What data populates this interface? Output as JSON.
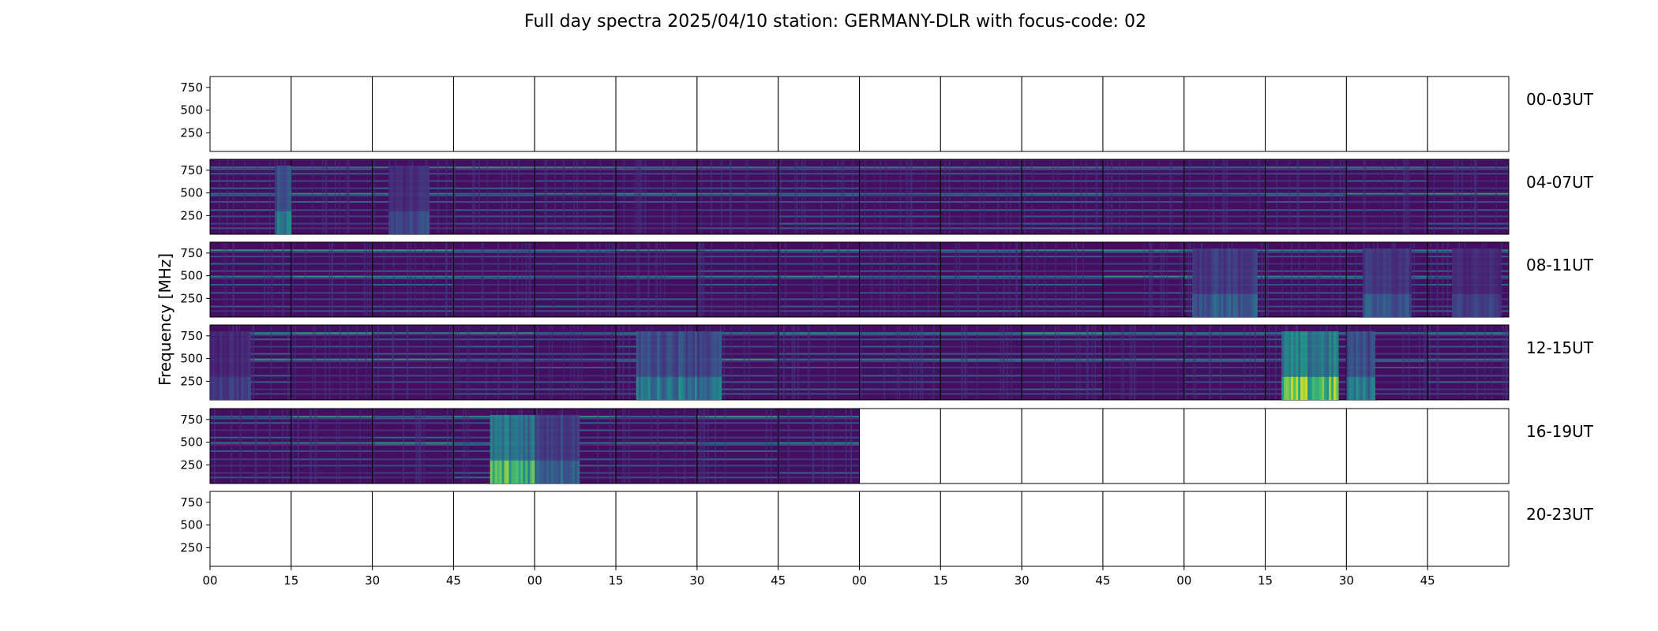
{
  "chart_data": {
    "type": "heatmap",
    "title": "Full day spectra 2025/04/10 station: GERMANY-DLR with focus-code: 02",
    "ylabel": "Frequency [MHz]",
    "xlabel": "",
    "ylim": [
      45,
      870
    ],
    "y_ticks": [
      "250",
      "500",
      "750"
    ],
    "y_tick_values": [
      250,
      500,
      750
    ],
    "x_ticks": [
      "00",
      "15",
      "30",
      "45",
      "00",
      "15",
      "30",
      "45",
      "00",
      "15",
      "30",
      "45",
      "00",
      "15",
      "30",
      "45"
    ],
    "x_unit_minutes_per_panel": 15,
    "colormap": "viridis",
    "grid": false,
    "legend": "none",
    "rows": [
      {
        "label": "00-03UT",
        "panels": [
          0,
          0,
          0,
          0,
          0,
          0,
          0,
          0,
          0,
          0,
          0,
          0,
          0,
          0,
          0,
          0
        ],
        "bursts": []
      },
      {
        "label": "04-07UT",
        "panels": [
          1,
          1,
          1,
          1,
          1,
          1,
          1,
          1,
          1,
          1,
          1,
          1,
          1,
          1,
          1,
          1
        ],
        "bursts": [
          {
            "panel": 0,
            "start": 0.8,
            "end": 1.0,
            "intensity": 0.55
          },
          {
            "panel": 2,
            "start": 0.2,
            "end": 0.7,
            "intensity": 0.3
          }
        ]
      },
      {
        "label": "08-11UT",
        "panels": [
          1,
          1,
          1,
          1,
          1,
          1,
          1,
          1,
          1,
          1,
          1,
          1,
          1,
          1,
          1,
          1
        ],
        "bursts": [
          {
            "panel": 12,
            "start": 0.1,
            "end": 0.9,
            "intensity": 0.4
          },
          {
            "panel": 14,
            "start": 0.2,
            "end": 0.8,
            "intensity": 0.35
          },
          {
            "panel": 15,
            "start": 0.3,
            "end": 0.9,
            "intensity": 0.25
          }
        ]
      },
      {
        "label": "12-15UT",
        "panels": [
          1,
          1,
          1,
          1,
          1,
          1,
          1,
          1,
          1,
          1,
          1,
          1,
          1,
          1,
          1,
          1
        ],
        "bursts": [
          {
            "panel": 0,
            "start": 0.0,
            "end": 0.5,
            "intensity": 0.25
          },
          {
            "panel": 5,
            "start": 0.25,
            "end": 1.0,
            "intensity": 0.55
          },
          {
            "panel": 6,
            "start": 0.0,
            "end": 0.3,
            "intensity": 0.5
          },
          {
            "panel": 13,
            "start": 0.2,
            "end": 0.9,
            "intensity": 0.95
          },
          {
            "panel": 14,
            "start": 0.0,
            "end": 0.35,
            "intensity": 0.55
          }
        ]
      },
      {
        "label": "16-19UT",
        "panels": [
          1,
          1,
          1,
          1,
          1,
          1,
          1,
          1,
          0,
          0,
          0,
          0,
          0,
          0,
          0,
          0
        ],
        "bursts": [
          {
            "panel": 3,
            "start": 0.45,
            "end": 1.0,
            "intensity": 0.9
          },
          {
            "panel": 4,
            "start": 0.0,
            "end": 0.55,
            "intensity": 0.45
          }
        ]
      },
      {
        "label": "20-23UT",
        "panels": [
          0,
          0,
          0,
          0,
          0,
          0,
          0,
          0,
          0,
          0,
          0,
          0,
          0,
          0,
          0,
          0
        ],
        "bursts": []
      }
    ]
  }
}
